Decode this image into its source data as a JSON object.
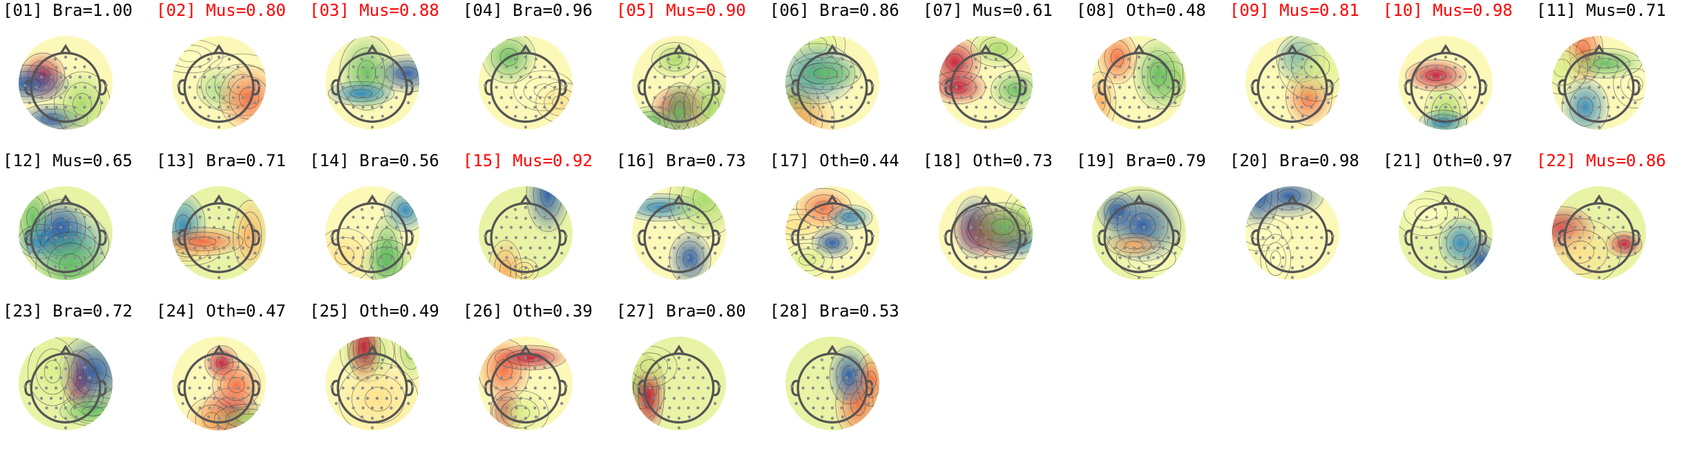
{
  "components": [
    {
      "label": "[01] Bra=1.00",
      "flag": false,
      "seed": 1
    },
    {
      "label": "[02] Mus=0.80",
      "flag": true,
      "seed": 2
    },
    {
      "label": "[03] Mus=0.88",
      "flag": true,
      "seed": 3
    },
    {
      "label": "[04] Bra=0.96",
      "flag": false,
      "seed": 4
    },
    {
      "label": "[05] Mus=0.90",
      "flag": true,
      "seed": 5
    },
    {
      "label": "[06] Bra=0.86",
      "flag": false,
      "seed": 6
    },
    {
      "label": "[07] Mus=0.61",
      "flag": false,
      "seed": 7
    },
    {
      "label": "[08] Oth=0.48",
      "flag": false,
      "seed": 8
    },
    {
      "label": "[09] Mus=0.81",
      "flag": true,
      "seed": 9
    },
    {
      "label": "[10] Mus=0.98",
      "flag": true,
      "seed": 10
    },
    {
      "label": "[11] Mus=0.71",
      "flag": false,
      "seed": 11
    },
    {
      "label": "[12] Mus=0.65",
      "flag": false,
      "seed": 12
    },
    {
      "label": "[13] Bra=0.71",
      "flag": false,
      "seed": 13
    },
    {
      "label": "[14] Bra=0.56",
      "flag": false,
      "seed": 14
    },
    {
      "label": "[15] Mus=0.92",
      "flag": true,
      "seed": 15
    },
    {
      "label": "[16] Bra=0.73",
      "flag": false,
      "seed": 16
    },
    {
      "label": "[17] Oth=0.44",
      "flag": false,
      "seed": 17
    },
    {
      "label": "[18] Oth=0.73",
      "flag": false,
      "seed": 18
    },
    {
      "label": "[19] Bra=0.79",
      "flag": false,
      "seed": 19
    },
    {
      "label": "[20] Bra=0.98",
      "flag": false,
      "seed": 20
    },
    {
      "label": "[21] Oth=0.97",
      "flag": false,
      "seed": 21
    },
    {
      "label": "[22] Mus=0.86",
      "flag": true,
      "seed": 22
    },
    {
      "label": "[23] Bra=0.72",
      "flag": false,
      "seed": 23
    },
    {
      "label": "[24] Oth=0.47",
      "flag": false,
      "seed": 24
    },
    {
      "label": "[25] Oth=0.49",
      "flag": false,
      "seed": 25
    },
    {
      "label": "[26] Oth=0.39",
      "flag": false,
      "seed": 26
    },
    {
      "label": "[27] Bra=0.80",
      "flag": false,
      "seed": 27
    },
    {
      "label": "[28] Bra=0.53",
      "flag": false,
      "seed": 28
    }
  ],
  "colors": {
    "flagged_label": "#ff0000",
    "normal_label": "#000000",
    "outline": "#555555",
    "sensor": "#8c8c8c"
  }
}
